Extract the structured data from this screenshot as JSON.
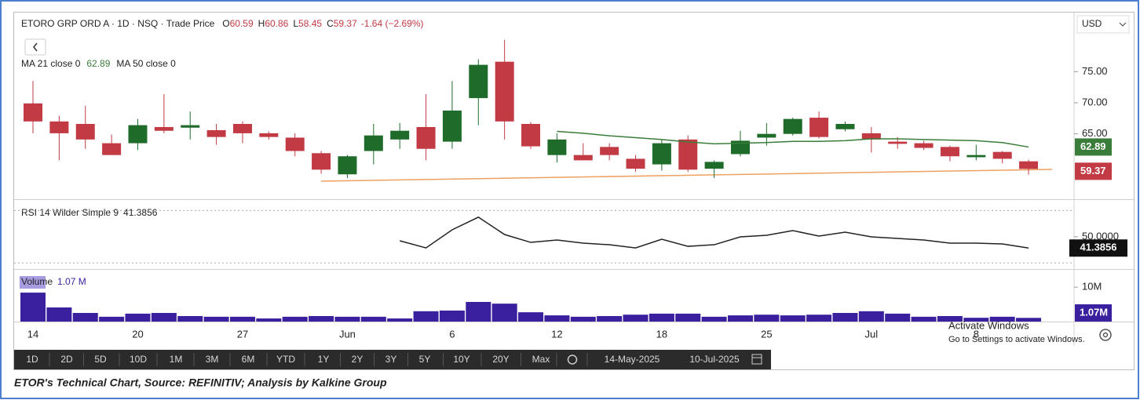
{
  "ui": {
    "currency": "USD",
    "toolbar": [
      "1D",
      "2D",
      "5D",
      "10D",
      "1M",
      "3M",
      "6M",
      "YTD",
      "1Y",
      "2Y",
      "3Y",
      "5Y",
      "10Y",
      "20Y",
      "Max"
    ],
    "date_from": "14-May-2025",
    "date_to": "10-Jul-2025",
    "watermark": [
      "Activate Windows",
      "Go to Settings to activate Windows."
    ],
    "caption": "ETOR's Technical Chart, Source: REFINITIV; Analysis by Kalkine Group"
  },
  "chart_data": [
    {
      "type": "candlestick",
      "title": "ETORO GRP ORD A · 1D · NSQ · Trade Price",
      "ohlc_prefixes": [
        "O",
        "H",
        "L",
        "C"
      ],
      "change": "-1.64 (−2.69%)",
      "categories": [
        "14",
        null,
        null,
        null,
        "20",
        null,
        null,
        null,
        "27",
        null,
        null,
        null,
        "Jun",
        null,
        null,
        null,
        "6",
        null,
        null,
        null,
        "12",
        null,
        null,
        null,
        "18",
        null,
        null,
        null,
        "25",
        null,
        null,
        null,
        "Jul",
        null,
        null,
        null,
        "8",
        null,
        null
      ],
      "open": [
        69.9,
        67.0,
        66.6,
        63.5,
        63.5,
        66.1,
        66.0,
        65.6,
        66.6,
        65.1,
        64.4,
        61.9,
        58.5,
        62.25,
        64.1,
        66.1,
        63.75,
        70.75,
        76.6,
        66.6,
        61.6,
        61.6,
        62.9,
        61.0,
        60.1,
        64.1,
        59.4,
        61.75,
        64.4,
        65.0,
        67.6,
        65.75,
        65.1,
        63.75,
        63.5,
        62.9,
        61.25,
        62.1,
        60.59
      ],
      "high": [
        73.5,
        67.9,
        69.5,
        64.9,
        67.4,
        71.4,
        68.6,
        66.6,
        67.0,
        65.4,
        65.1,
        62.25,
        61.6,
        66.6,
        66.75,
        71.4,
        73.5,
        77.0,
        80.1,
        66.9,
        65.1,
        63.5,
        63.5,
        61.6,
        64.1,
        64.75,
        60.75,
        65.5,
        66.75,
        67.6,
        68.6,
        67.0,
        66.1,
        64.5,
        63.9,
        63.1,
        63.25,
        62.25,
        60.86
      ],
      "low": [
        65.1,
        60.75,
        62.6,
        61.6,
        62.4,
        65.1,
        64.1,
        63.25,
        63.5,
        64.1,
        61.4,
        58.6,
        57.9,
        60.1,
        62.6,
        60.75,
        62.6,
        66.4,
        64.1,
        62.6,
        60.4,
        60.75,
        60.75,
        58.9,
        59.1,
        58.9,
        57.9,
        61.4,
        63.1,
        64.75,
        64.25,
        65.4,
        62.0,
        62.6,
        62.4,
        60.6,
        60.75,
        60.25,
        58.45
      ],
      "close": [
        67.0,
        65.1,
        64.1,
        61.6,
        66.4,
        65.5,
        66.4,
        64.5,
        65.1,
        64.5,
        62.25,
        59.25,
        61.4,
        64.75,
        65.5,
        62.6,
        68.75,
        76.1,
        67.0,
        63.0,
        64.1,
        60.75,
        61.6,
        59.4,
        63.5,
        59.25,
        60.5,
        63.9,
        65.0,
        67.4,
        64.5,
        66.6,
        64.1,
        63.4,
        62.75,
        61.4,
        61.6,
        61.0,
        59.37
      ],
      "up_color": "#1e6b2a",
      "down_color": "#c23a44",
      "series": [
        {
          "name": "MA 21 close 0",
          "color": "#3a7d3a",
          "values": [
            null,
            null,
            null,
            null,
            null,
            null,
            null,
            null,
            null,
            null,
            null,
            null,
            null,
            null,
            null,
            null,
            null,
            null,
            null,
            null,
            65.4,
            65.1,
            64.7,
            64.4,
            64.1,
            63.7,
            63.4,
            63.5,
            63.6,
            63.8,
            63.8,
            63.9,
            64.2,
            64.2,
            64.1,
            64.0,
            63.9,
            63.6,
            62.89
          ]
        },
        {
          "name": "MA 50 close 0",
          "color": "#e0802a",
          "values": [
            null,
            null,
            null,
            null,
            null,
            null,
            null,
            null,
            null,
            null,
            null,
            null,
            null,
            null,
            null,
            null,
            null,
            null,
            null,
            null,
            null,
            null,
            null,
            null,
            null,
            null,
            null,
            null,
            null,
            null,
            null,
            null,
            null,
            null,
            null,
            null,
            null,
            null,
            null
          ]
        }
      ],
      "ylim": [
        54.5,
        84.5
      ],
      "yticks": [
        {
          "value": 75,
          "label": "75.00"
        },
        {
          "value": 70,
          "label": "70.00"
        },
        {
          "value": 65,
          "label": "65.00"
        }
      ]
    },
    {
      "type": "line",
      "title": "RSI 14 Wilder Simple 9",
      "color": "#222222",
      "values": [
        null,
        null,
        null,
        null,
        null,
        null,
        null,
        null,
        null,
        null,
        null,
        null,
        null,
        null,
        46.9,
        41.5,
        55.3,
        64.9,
        51.7,
        45.7,
        47.5,
        45.1,
        43.9,
        41.5,
        48.1,
        42.7,
        43.9,
        49.9,
        51.1,
        54.7,
        50.5,
        53.5,
        49.9,
        48.7,
        47.5,
        45.1,
        45.1,
        44.5,
        41.3856
      ],
      "levels": [
        70,
        30
      ],
      "ylim": [
        26,
        78
      ],
      "yticks": [
        {
          "value": 50,
          "label": "50.0000"
        }
      ]
    },
    {
      "type": "bar",
      "title": "Volume",
      "color": "#3a1f9e",
      "values": [
        8.4,
        4.1,
        2.5,
        1.4,
        2.3,
        2.5,
        1.6,
        1.4,
        1.4,
        0.9,
        1.4,
        1.6,
        1.4,
        1.4,
        0.9,
        3.0,
        3.2,
        5.7,
        5.2,
        2.7,
        1.8,
        1.4,
        1.6,
        2.0,
        2.3,
        2.3,
        1.4,
        1.8,
        2.0,
        1.8,
        2.0,
        2.5,
        3.0,
        2.3,
        1.4,
        1.6,
        1.1,
        1.4,
        1.07
      ],
      "legend_value_label": "1.07 M",
      "axis_value_label": "1.07M",
      "ylim": [
        0,
        14.8
      ],
      "yticks": [
        {
          "value": 10,
          "label": "10M"
        }
      ]
    }
  ]
}
